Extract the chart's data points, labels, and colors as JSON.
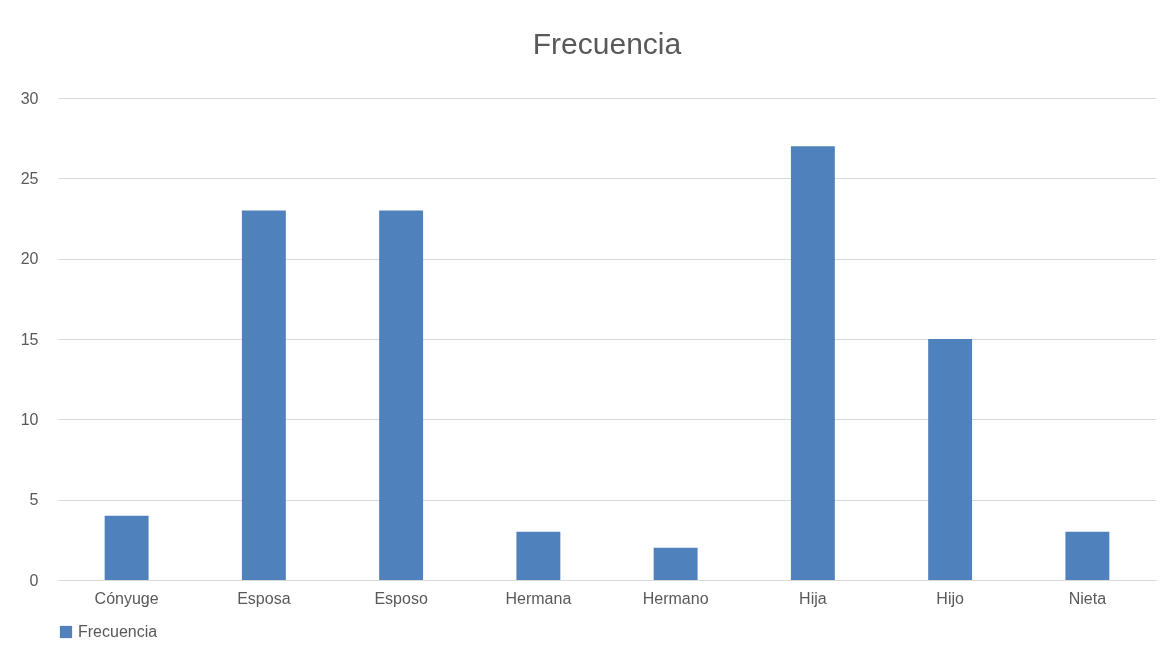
{
  "chart_data": {
    "type": "bar",
    "title": "Frecuencia",
    "categories": [
      "Cónyuge",
      "Esposa",
      "Esposo",
      "Hermana",
      "Hermano",
      "Hija",
      "Hijo",
      "Nieta"
    ],
    "series": [
      {
        "name": "Frecuencia",
        "color": "#4f81bd",
        "values": [
          4,
          23,
          23,
          3,
          2,
          27,
          15,
          3
        ]
      }
    ],
    "ylim": [
      0,
      30
    ],
    "yticks": [
      0,
      5,
      10,
      15,
      20,
      25,
      30
    ],
    "grid": "y",
    "legend": "bottom"
  }
}
